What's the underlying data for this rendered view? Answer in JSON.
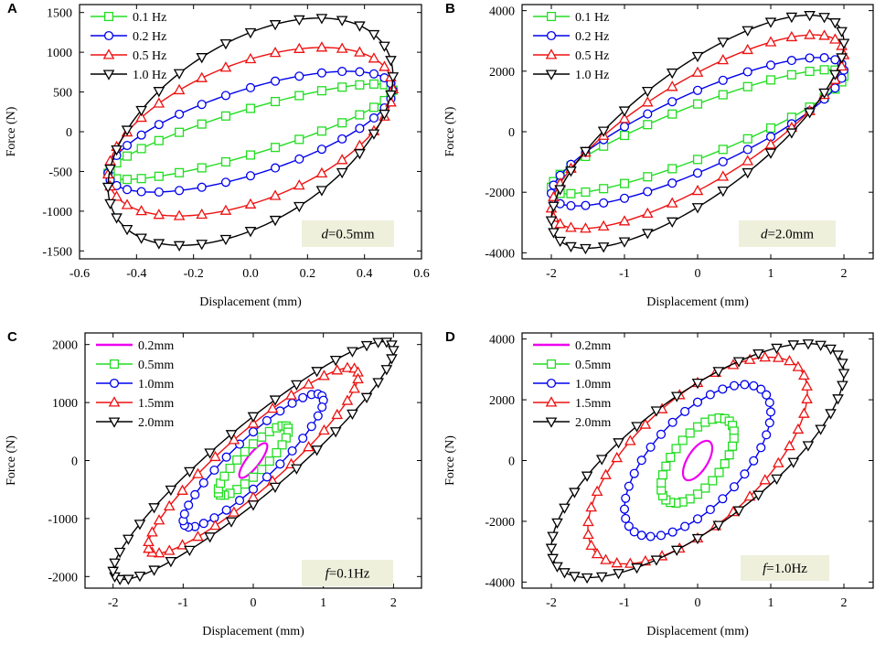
{
  "colors": {
    "green": "#22dd22",
    "blue": "#0000ee",
    "red": "#ee1111",
    "black": "#000000",
    "magenta": "#ee00ee",
    "annotation_bg": "#eef0dc"
  },
  "chart_data": [
    {
      "type": "line",
      "panel": "A",
      "xlabel": "Displacement (mm)",
      "ylabel": "Force (N)",
      "xlim": [
        -0.6,
        0.6
      ],
      "ylim": [
        -1600,
        1600
      ],
      "xticks": [
        -0.6,
        -0.4,
        -0.2,
        0.0,
        0.2,
        0.4,
        0.6
      ],
      "xtick_labels": [
        "-0.6",
        "-0.4",
        "-0.2",
        "0.0",
        "0.2",
        "0.4",
        "0.6"
      ],
      "yticks": [
        -1500,
        -1000,
        -500,
        0,
        500,
        1000,
        1500
      ],
      "ytick_labels": [
        "-1500",
        "-1000",
        "-500",
        "0",
        "500",
        "1000",
        "1500"
      ],
      "legend_position": "top-left",
      "annotation": {
        "prefix": "d",
        "suffix": "=0.5mm"
      },
      "series": [
        {
          "name": "0.1 Hz",
          "color": "green",
          "marker": "square",
          "amplitude": 0.5,
          "k": 1000,
          "c": 280,
          "peak": 600,
          "n": 36
        },
        {
          "name": "0.2 Hz",
          "color": "blue",
          "marker": "circle",
          "amplitude": 0.5,
          "k": 1050,
          "c": 560,
          "peak": 760,
          "n": 36
        },
        {
          "name": "0.5 Hz",
          "color": "red",
          "marker": "triangle-up",
          "amplitude": 0.5,
          "k": 1150,
          "c": 980,
          "peak": 1060,
          "n": 36
        },
        {
          "name": "1.0 Hz",
          "color": "black",
          "marker": "triangle-down",
          "amplitude": 0.5,
          "k": 1400,
          "c": 1260,
          "peak": 1430,
          "n": 36
        }
      ]
    },
    {
      "type": "line",
      "panel": "B",
      "xlabel": "Displacement (mm)",
      "ylabel": "Force (N)",
      "xlim": [
        -2.4,
        2.4
      ],
      "ylim": [
        -4200,
        4200
      ],
      "xticks": [
        -2,
        -1,
        0,
        1,
        2
      ],
      "xtick_labels": [
        "-2",
        "-1",
        "0",
        "1",
        "2"
      ],
      "yticks": [
        -4000,
        -2000,
        0,
        2000,
        4000
      ],
      "ytick_labels": [
        "-4000",
        "-2000",
        "0",
        "2000",
        "4000"
      ],
      "legend_position": "top-left",
      "annotation": {
        "prefix": "d",
        "suffix": "=2.0mm"
      },
      "series": [
        {
          "name": "0.1 Hz",
          "color": "green",
          "marker": "square",
          "amplitude": 2.0,
          "k": 1000,
          "c": 1000,
          "peak": 2050,
          "n": 36
        },
        {
          "name": "0.2 Hz",
          "color": "blue",
          "marker": "circle",
          "amplitude": 2.0,
          "k": 1080,
          "c": 1450,
          "peak": 2450,
          "n": 36
        },
        {
          "name": "0.5 Hz",
          "color": "red",
          "marker": "triangle-up",
          "amplitude": 2.0,
          "k": 1200,
          "c": 1850,
          "peak": 3200,
          "n": 36
        },
        {
          "name": "1.0 Hz",
          "color": "black",
          "marker": "triangle-down",
          "amplitude": 2.0,
          "k": 1350,
          "c": 2300,
          "peak": 3850,
          "n": 36
        }
      ]
    },
    {
      "type": "line",
      "panel": "C",
      "xlabel": "Displacement (mm)",
      "ylabel": "Force (N)",
      "xlim": [
        -2.4,
        2.4
      ],
      "ylim": [
        -2200,
        2200
      ],
      "xticks": [
        -2,
        -1,
        0,
        1,
        2
      ],
      "xtick_labels": [
        "-2",
        "-1",
        "0",
        "1",
        "2"
      ],
      "yticks": [
        -2000,
        -1000,
        0,
        1000,
        2000
      ],
      "ytick_labels": [
        "-2000",
        "-1000",
        "0",
        "1000",
        "2000"
      ],
      "legend_position": "top-left",
      "annotation": {
        "prefix": "f",
        "suffix": "=0.1Hz"
      },
      "series": [
        {
          "name": "0.2mm",
          "color": "magenta",
          "marker": "none",
          "amplitude": 0.2,
          "k": 1100,
          "c": 150,
          "peak": 300,
          "n": 0
        },
        {
          "name": "0.5mm",
          "color": "green",
          "marker": "square",
          "amplitude": 0.5,
          "k": 1100,
          "c": 300,
          "peak": 600,
          "n": 26
        },
        {
          "name": "1.0mm",
          "color": "blue",
          "marker": "circle",
          "amplitude": 1.0,
          "k": 1050,
          "c": 500,
          "peak": 1150,
          "n": 32
        },
        {
          "name": "1.5mm",
          "color": "red",
          "marker": "triangle-up",
          "amplitude": 1.5,
          "k": 1000,
          "c": 650,
          "peak": 1600,
          "n": 34
        },
        {
          "name": "2.0mm",
          "color": "black",
          "marker": "triangle-down",
          "amplitude": 2.0,
          "k": 1000,
          "c": 800,
          "peak": 2050,
          "n": 40
        }
      ]
    },
    {
      "type": "line",
      "panel": "D",
      "xlabel": "Displacement (mm)",
      "ylabel": "Force (N)",
      "xlim": [
        -2.4,
        2.4
      ],
      "ylim": [
        -4200,
        4200
      ],
      "xticks": [
        -2,
        -1,
        0,
        1,
        2
      ],
      "xtick_labels": [
        "-2",
        "-1",
        "0",
        "1",
        "2"
      ],
      "yticks": [
        -4000,
        -2000,
        0,
        2000,
        4000
      ],
      "ytick_labels": [
        "-4000",
        "-2000",
        "0",
        "2000",
        "4000"
      ],
      "legend_position": "top-left",
      "annotation": {
        "prefix": "f",
        "suffix": "=1.0Hz"
      },
      "series": [
        {
          "name": "0.2mm",
          "color": "magenta",
          "marker": "none",
          "amplitude": 0.2,
          "k": 2200,
          "c": 550,
          "peak": 650,
          "n": 0
        },
        {
          "name": "0.5mm",
          "color": "green",
          "marker": "square",
          "amplitude": 0.5,
          "k": 1700,
          "c": 1100,
          "peak": 1400,
          "n": 30
        },
        {
          "name": "1.0mm",
          "color": "blue",
          "marker": "circle",
          "amplitude": 1.0,
          "k": 1500,
          "c": 1800,
          "peak": 2500,
          "n": 36
        },
        {
          "name": "1.5mm",
          "color": "red",
          "marker": "triangle-up",
          "amplitude": 1.5,
          "k": 1400,
          "c": 2400,
          "peak": 3400,
          "n": 38
        },
        {
          "name": "2.0mm",
          "color": "black",
          "marker": "triangle-down",
          "amplitude": 2.0,
          "k": 1350,
          "c": 2400,
          "peak": 3850,
          "n": 44
        }
      ]
    }
  ]
}
